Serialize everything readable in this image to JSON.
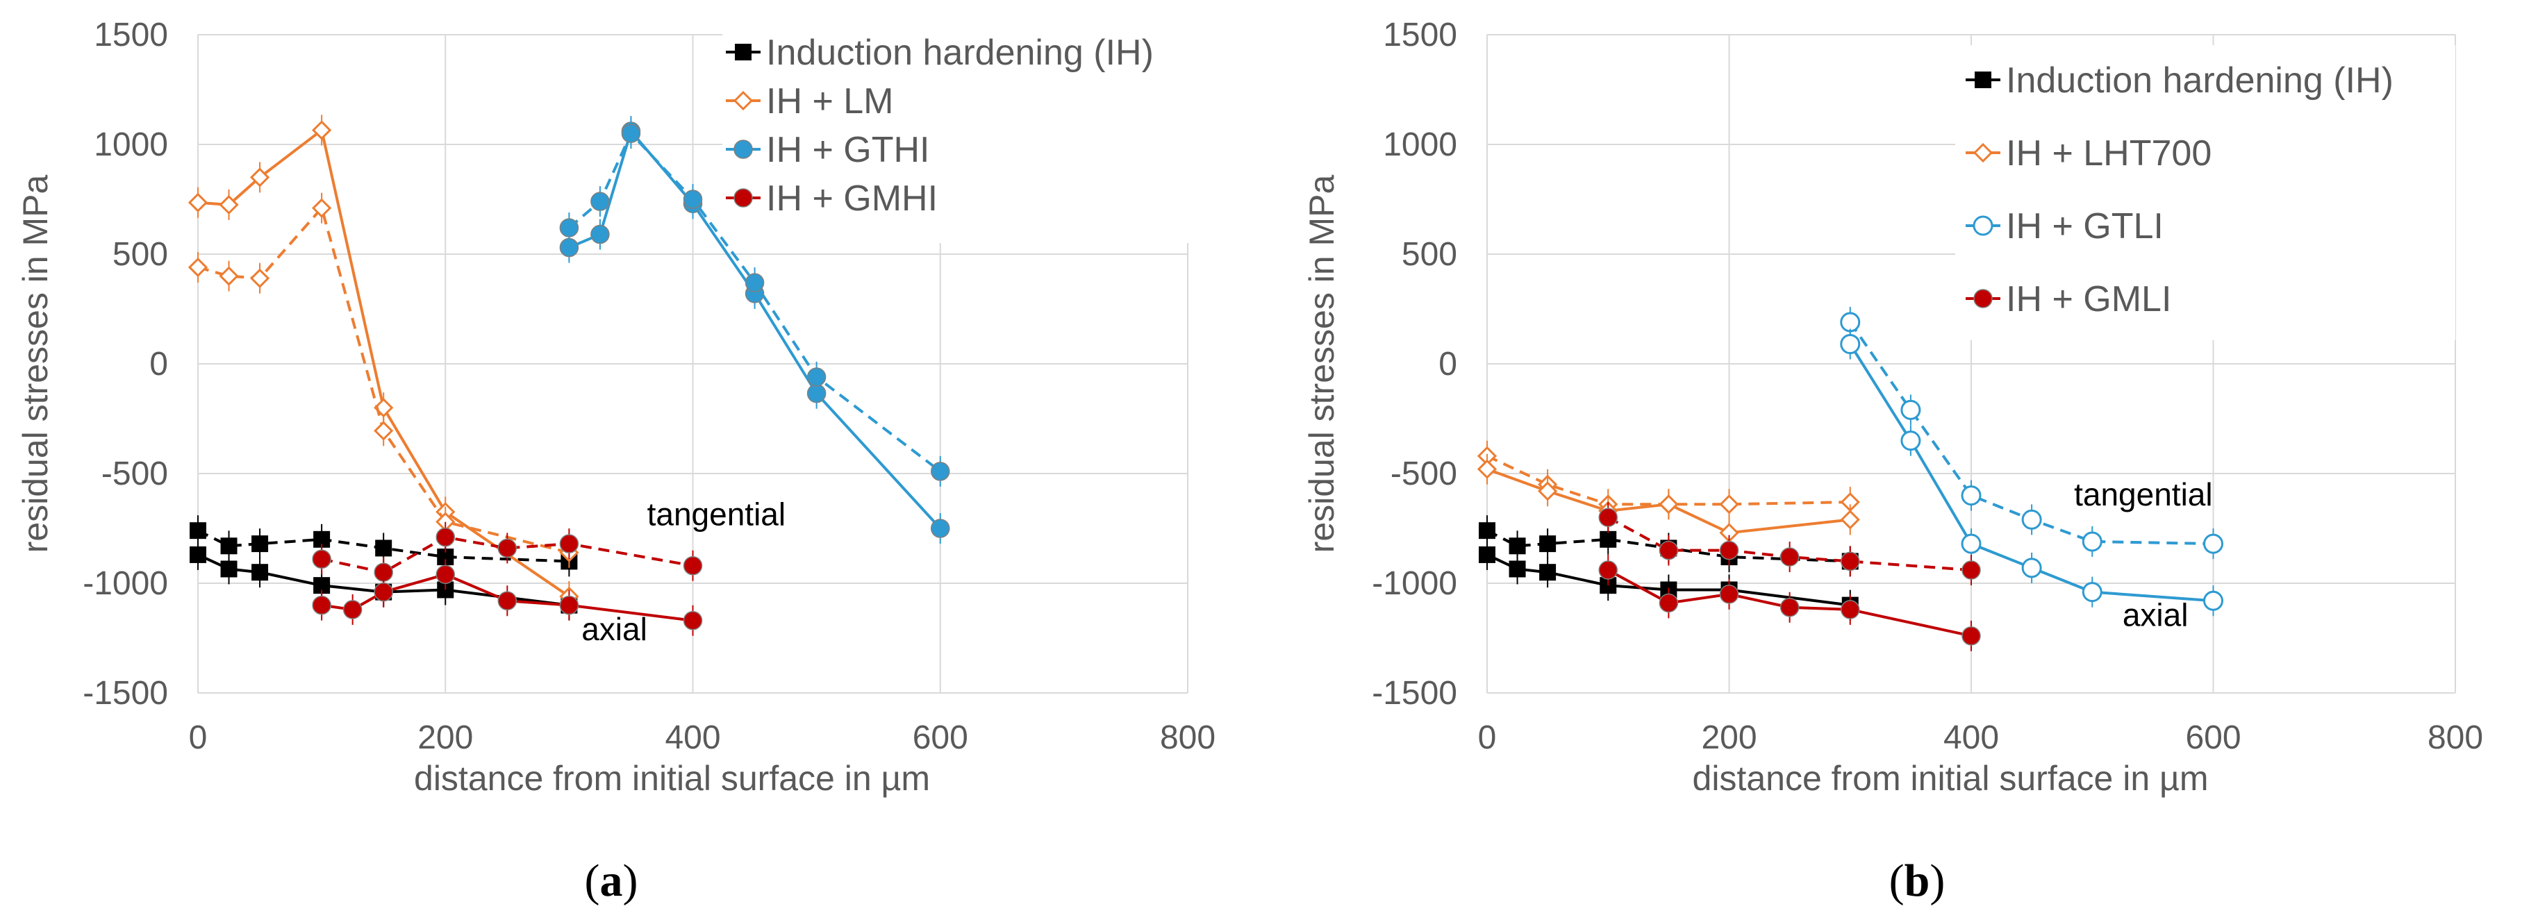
{
  "chart_data": [
    {
      "type": "line",
      "panel_label": "a",
      "xlabel": "distance from initial surface in µm",
      "ylabel": "residual stresses in MPa",
      "xlim": [
        0,
        800
      ],
      "ylim": [
        -1500,
        1500
      ],
      "xticks": [
        0,
        200,
        400,
        600,
        800
      ],
      "yticks": [
        -1500,
        -1000,
        -500,
        0,
        500,
        1000,
        1500
      ],
      "grid": true,
      "legend_position": "top-right",
      "legend": [
        {
          "label": "Induction hardening (IH)",
          "color": "#000000",
          "marker": "square-filled"
        },
        {
          "label": "IH + LM",
          "color": "#ED7D31",
          "marker": "diamond-open"
        },
        {
          "label": "IH + GTHI",
          "color": "#2E9AD1",
          "marker": "circle-filled"
        },
        {
          "label": "IH + GMHI",
          "color": "#C00000",
          "marker": "circle-filled"
        }
      ],
      "annotations": [
        {
          "text": "tangential",
          "x": 363,
          "y": -735
        },
        {
          "text": "axial",
          "x": 310,
          "y": -1260
        }
      ],
      "series": [
        {
          "legend": 0,
          "direction": "tangential",
          "dashed": true,
          "x": [
            0,
            25,
            50,
            100,
            150,
            200,
            300
          ],
          "y": [
            -760,
            -830,
            -820,
            -800,
            -840,
            -880,
            -900
          ]
        },
        {
          "legend": 0,
          "direction": "axial",
          "dashed": false,
          "x": [
            0,
            25,
            50,
            100,
            150,
            200,
            300
          ],
          "y": [
            -870,
            -935,
            -950,
            -1010,
            -1040,
            -1030,
            -1100
          ]
        },
        {
          "legend": 1,
          "direction": "axial",
          "dashed": false,
          "x": [
            0,
            25,
            50,
            100,
            150,
            200,
            300
          ],
          "y": [
            735,
            725,
            850,
            1065,
            -200,
            -675,
            -1060
          ]
        },
        {
          "legend": 1,
          "direction": "tangential",
          "dashed": true,
          "x": [
            0,
            25,
            50,
            100,
            150,
            200,
            300
          ],
          "y": [
            440,
            400,
            390,
            710,
            -305,
            -720,
            -860
          ]
        },
        {
          "legend": 2,
          "direction": "axial",
          "dashed": false,
          "x": [
            300,
            325,
            350,
            400,
            450,
            500,
            600
          ],
          "y": [
            530,
            590,
            1060,
            730,
            320,
            -135,
            -750
          ]
        },
        {
          "legend": 2,
          "direction": "tangential",
          "dashed": true,
          "x": [
            300,
            325,
            350,
            400,
            450,
            500,
            600
          ],
          "y": [
            620,
            740,
            1050,
            750,
            370,
            -60,
            -490
          ]
        },
        {
          "legend": 3,
          "direction": "tangential",
          "dashed": true,
          "x": [
            100,
            150,
            200,
            250,
            300,
            400
          ],
          "y": [
            -890,
            -950,
            -790,
            -840,
            -820,
            -920
          ]
        },
        {
          "legend": 3,
          "direction": "axial",
          "dashed": false,
          "x": [
            100,
            125,
            150,
            200,
            250,
            300,
            400
          ],
          "y": [
            -1100,
            -1120,
            -1040,
            -960,
            -1080,
            -1100,
            -1170
          ]
        }
      ]
    },
    {
      "type": "line",
      "panel_label": "b",
      "xlabel": "distance from initial surface in µm",
      "ylabel": "residual stresses in MPa",
      "xlim": [
        0,
        800
      ],
      "ylim": [
        -1500,
        1500
      ],
      "xticks": [
        0,
        200,
        400,
        600,
        800
      ],
      "yticks": [
        -1500,
        -1000,
        -500,
        0,
        500,
        1000,
        1500
      ],
      "grid": true,
      "legend_position": "top-right",
      "legend": [
        {
          "label": "Induction hardening (IH)",
          "color": "#000000",
          "marker": "square-filled"
        },
        {
          "label": "IH + LHT700",
          "color": "#ED7D31",
          "marker": "diamond-open"
        },
        {
          "label": "IH + GTLI",
          "color": "#2E9AD1",
          "marker": "circle-open"
        },
        {
          "label": "IH + GMLI",
          "color": "#C00000",
          "marker": "circle-filled"
        }
      ],
      "annotations": [
        {
          "text": "tangential",
          "x": 485,
          "y": -645
        },
        {
          "text": "axial",
          "x": 525,
          "y": -1195
        }
      ],
      "series": [
        {
          "legend": 0,
          "direction": "tangential",
          "dashed": true,
          "x": [
            0,
            25,
            50,
            100,
            150,
            200,
            300
          ],
          "y": [
            -760,
            -830,
            -820,
            -800,
            -840,
            -880,
            -900
          ]
        },
        {
          "legend": 0,
          "direction": "axial",
          "dashed": false,
          "x": [
            0,
            25,
            50,
            100,
            150,
            200,
            300
          ],
          "y": [
            -870,
            -935,
            -950,
            -1010,
            -1030,
            -1030,
            -1100
          ]
        },
        {
          "legend": 1,
          "direction": "tangential",
          "dashed": true,
          "x": [
            0,
            50,
            100,
            150,
            200,
            300
          ],
          "y": [
            -420,
            -550,
            -640,
            -640,
            -640,
            -630
          ]
        },
        {
          "legend": 1,
          "direction": "axial",
          "dashed": false,
          "x": [
            0,
            50,
            100,
            150,
            200,
            300
          ],
          "y": [
            -480,
            -580,
            -670,
            -640,
            -770,
            -710
          ]
        },
        {
          "legend": 2,
          "direction": "tangential",
          "dashed": true,
          "x": [
            300,
            350,
            400,
            450,
            500,
            600
          ],
          "y": [
            190,
            -210,
            -600,
            -710,
            -810,
            -820
          ]
        },
        {
          "legend": 2,
          "direction": "axial",
          "dashed": false,
          "x": [
            300,
            350,
            400,
            450,
            500,
            600
          ],
          "y": [
            90,
            -350,
            -820,
            -930,
            -1040,
            -1080
          ]
        },
        {
          "legend": 3,
          "direction": "tangential",
          "dashed": true,
          "x": [
            100,
            150,
            200,
            250,
            300,
            400
          ],
          "y": [
            -700,
            -850,
            -850,
            -880,
            -900,
            -940
          ]
        },
        {
          "legend": 3,
          "direction": "axial",
          "dashed": false,
          "x": [
            100,
            150,
            200,
            250,
            300,
            400
          ],
          "y": [
            -940,
            -1090,
            -1050,
            -1110,
            -1120,
            -1240
          ]
        }
      ]
    }
  ]
}
